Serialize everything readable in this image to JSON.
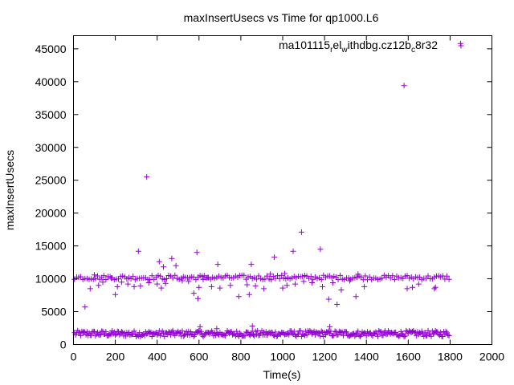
{
  "chart_data": {
    "type": "scatter",
    "title": "maxInsertUsecs vs Time for qp1000.L6",
    "xlabel": "Time(s)",
    "ylabel": "maxInsertUsecs",
    "xlim": [
      0,
      2000
    ],
    "ylim": [
      0,
      47000
    ],
    "x_ticks": [
      0,
      200,
      400,
      600,
      800,
      1000,
      1200,
      1400,
      1600,
      1800,
      2000
    ],
    "y_ticks": [
      0,
      5000,
      10000,
      15000,
      20000,
      25000,
      30000,
      35000,
      40000,
      45000
    ],
    "grid": false,
    "legend_position": "top-right",
    "legend": {
      "base": "ma101115",
      "sub1": "r",
      "mid1": "el",
      "sub2": "w",
      "mid2": "ithdbg.cz12b",
      "sub3": "c",
      "tail": "8r32"
    },
    "marker": "+",
    "color": "#9400d3",
    "series": [
      {
        "name": "ma101115_rel_withdbg.cz12b_c8r32",
        "bands": [
          {
            "x_start": 5,
            "x_end": 1795,
            "x_step": 5,
            "y_center": 1650,
            "y_spread": 450
          },
          {
            "x_start": 5,
            "x_end": 1795,
            "x_step": 10,
            "y_center": 10200,
            "y_spread": 350
          }
        ],
        "points": [
          [
            55,
            5700
          ],
          [
            80,
            8500
          ],
          [
            100,
            10600
          ],
          [
            120,
            9000
          ],
          [
            140,
            9500
          ],
          [
            180,
            10100
          ],
          [
            200,
            7600
          ],
          [
            210,
            8800
          ],
          [
            230,
            9500
          ],
          [
            260,
            9200
          ],
          [
            290,
            8800
          ],
          [
            310,
            14200
          ],
          [
            320,
            8900
          ],
          [
            350,
            25500
          ],
          [
            360,
            9400
          ],
          [
            400,
            9200
          ],
          [
            410,
            12600
          ],
          [
            420,
            8600
          ],
          [
            430,
            11800
          ],
          [
            440,
            9300
          ],
          [
            470,
            13100
          ],
          [
            490,
            12000
          ],
          [
            520,
            9700
          ],
          [
            550,
            9600
          ],
          [
            575,
            7800
          ],
          [
            590,
            14000
          ],
          [
            595,
            7000
          ],
          [
            600,
            8700
          ],
          [
            605,
            2700
          ],
          [
            620,
            9900
          ],
          [
            640,
            10200
          ],
          [
            660,
            8800
          ],
          [
            685,
            2400
          ],
          [
            690,
            12200
          ],
          [
            700,
            8600
          ],
          [
            750,
            9000
          ],
          [
            790,
            7300
          ],
          [
            830,
            9100
          ],
          [
            840,
            7600
          ],
          [
            850,
            12200
          ],
          [
            855,
            2800
          ],
          [
            870,
            8900
          ],
          [
            910,
            8500
          ],
          [
            940,
            10700
          ],
          [
            960,
            13300
          ],
          [
            1000,
            8600
          ],
          [
            1010,
            10800
          ],
          [
            1020,
            9000
          ],
          [
            1050,
            14200
          ],
          [
            1060,
            9200
          ],
          [
            1090,
            17100
          ],
          [
            1100,
            9600
          ],
          [
            1140,
            9400
          ],
          [
            1180,
            14500
          ],
          [
            1190,
            8800
          ],
          [
            1220,
            6900
          ],
          [
            1225,
            2700
          ],
          [
            1240,
            9400
          ],
          [
            1260,
            6100
          ],
          [
            1280,
            8300
          ],
          [
            1320,
            9700
          ],
          [
            1350,
            7300
          ],
          [
            1360,
            10700
          ],
          [
            1390,
            8800
          ],
          [
            1580,
            39400
          ],
          [
            1595,
            8500
          ],
          [
            1620,
            8700
          ],
          [
            1650,
            9200
          ],
          [
            1725,
            8500
          ],
          [
            1730,
            8700
          ],
          [
            1850,
            45800
          ]
        ]
      }
    ]
  }
}
